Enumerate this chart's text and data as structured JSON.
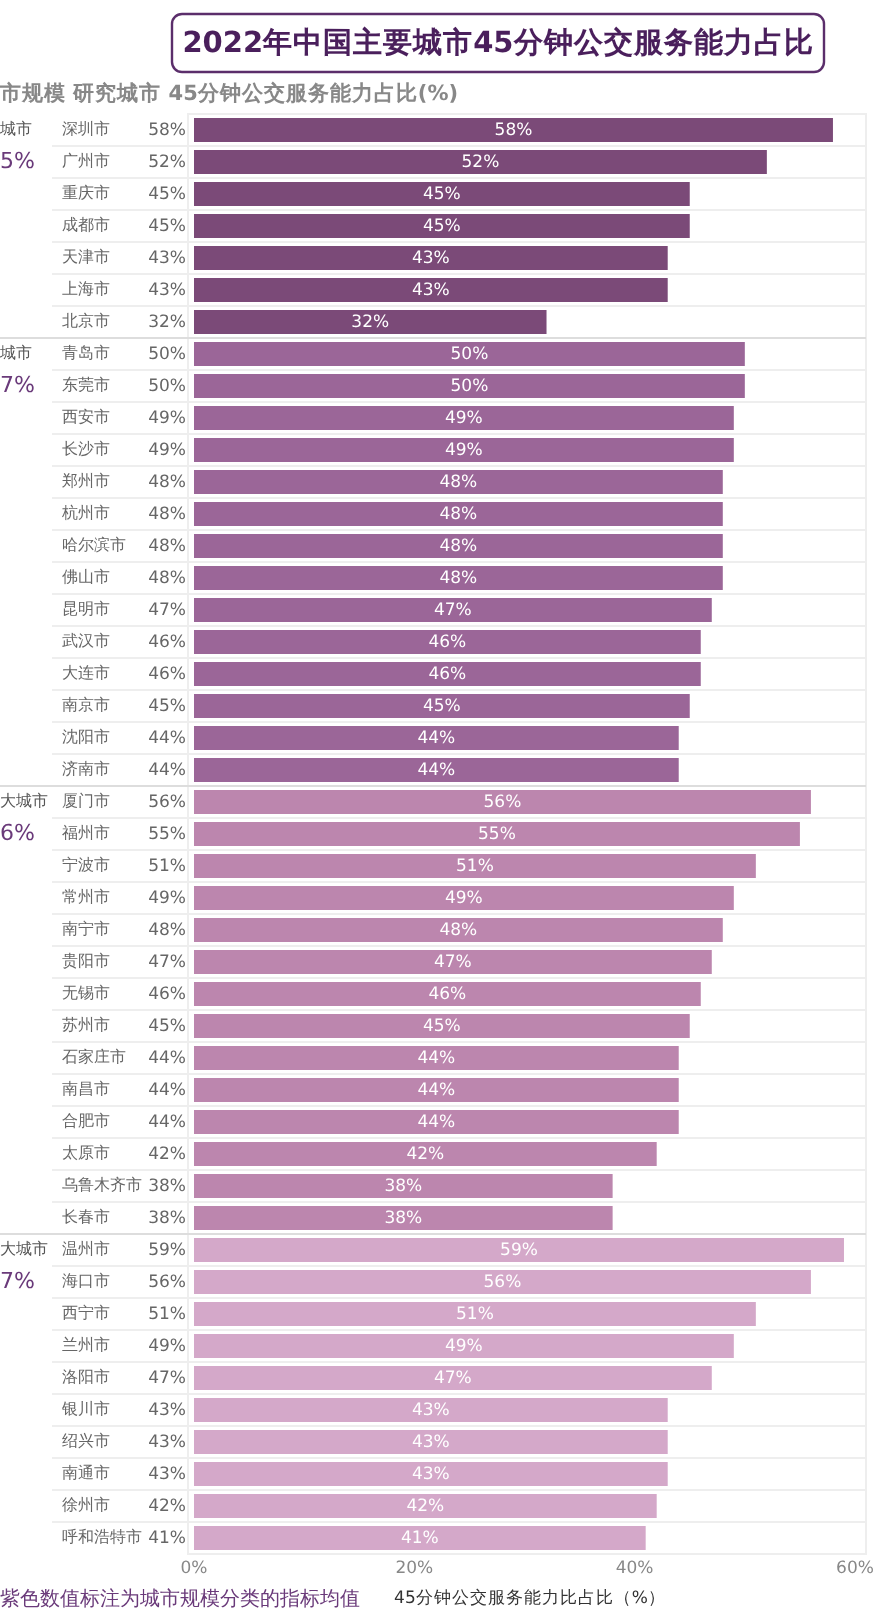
{
  "chart_data": {
    "type": "bar",
    "orientation": "horizontal",
    "title": "2022年中国主要城市45分钟公交服务能力占比",
    "subtitle": "市规模 研究城市 45分钟公交服务能力占比(%)",
    "xlabel": "45分钟公交服务能力比占比（%）",
    "categories": [
      "深圳市",
      "广州市",
      "重庆市",
      "成都市",
      "天津市",
      "上海市",
      "北京市",
      "青岛市",
      "东莞市",
      "西安市",
      "长沙市",
      "郑州市",
      "杭州市",
      "哈尔滨市",
      "佛山市",
      "昆明市",
      "武汉市",
      "大连市",
      "南京市",
      "沈阳市",
      "济南市",
      "厦门市",
      "福州市",
      "宁波市",
      "常州市",
      "南宁市",
      "贵阳市",
      "无锡市",
      "苏州市",
      "石家庄市",
      "南昌市",
      "合肥市",
      "太原市",
      "乌鲁木齐市",
      "长春市",
      "温州市",
      "海口市",
      "西宁市",
      "兰州市",
      "洛阳市",
      "银川市",
      "绍兴市",
      "南通市",
      "徐州市",
      "呼和浩特市"
    ],
    "values": [
      58,
      52,
      45,
      45,
      43,
      43,
      32,
      50,
      50,
      49,
      49,
      48,
      48,
      48,
      48,
      47,
      46,
      46,
      45,
      44,
      44,
      56,
      55,
      51,
      49,
      48,
      47,
      46,
      45,
      44,
      44,
      44,
      42,
      38,
      38,
      59,
      56,
      51,
      49,
      47,
      43,
      43,
      43,
      42,
      41
    ],
    "value_labels": [
      "58%",
      "52%",
      "45%",
      "45%",
      "43%",
      "43%",
      "32%",
      "50%",
      "50%",
      "49%",
      "49%",
      "48%",
      "48%",
      "48%",
      "48%",
      "47%",
      "46%",
      "46%",
      "45%",
      "44%",
      "44%",
      "56%",
      "55%",
      "51%",
      "49%",
      "48%",
      "47%",
      "46%",
      "45%",
      "44%",
      "44%",
      "44%",
      "42%",
      "38%",
      "38%",
      "59%",
      "56%",
      "51%",
      "49%",
      "47%",
      "43%",
      "43%",
      "43%",
      "42%",
      "41%"
    ],
    "data_labels": true,
    "colors": [
      "#7b4a78",
      "#7b4a78",
      "#7b4a78",
      "#7b4a78",
      "#7b4a78",
      "#7b4a78",
      "#7b4a78",
      "#9b6698",
      "#9b6698",
      "#9b6698",
      "#9b6698",
      "#9b6698",
      "#9b6698",
      "#9b6698",
      "#9b6698",
      "#9b6698",
      "#9b6698",
      "#9b6698",
      "#9b6698",
      "#9b6698",
      "#9b6698",
      "#bc86ae",
      "#bc86ae",
      "#bc86ae",
      "#bc86ae",
      "#bc86ae",
      "#bc86ae",
      "#bc86ae",
      "#bc86ae",
      "#bc86ae",
      "#bc86ae",
      "#bc86ae",
      "#bc86ae",
      "#bc86ae",
      "#bc86ae",
      "#d4a8c9",
      "#d4a8c9",
      "#d4a8c9",
      "#d4a8c9",
      "#d4a8c9",
      "#d4a8c9",
      "#d4a8c9",
      "#d4a8c9",
      "#d4a8c9",
      "#d4a8c9"
    ],
    "xlim": [
      0,
      61
    ],
    "xticks": [
      {
        "value": 0,
        "label": "0%"
      },
      {
        "value": 20,
        "label": "20%"
      },
      {
        "value": 40,
        "label": "40%"
      },
      {
        "value": 60,
        "label": "60%"
      }
    ],
    "annotations": [
      "城市\n5%",
      "城市\n7%",
      "大城市\n6%",
      "大城市\n7%",
      "紫色数值标注为城市规模分类的指标均值"
    ]
  }
}
